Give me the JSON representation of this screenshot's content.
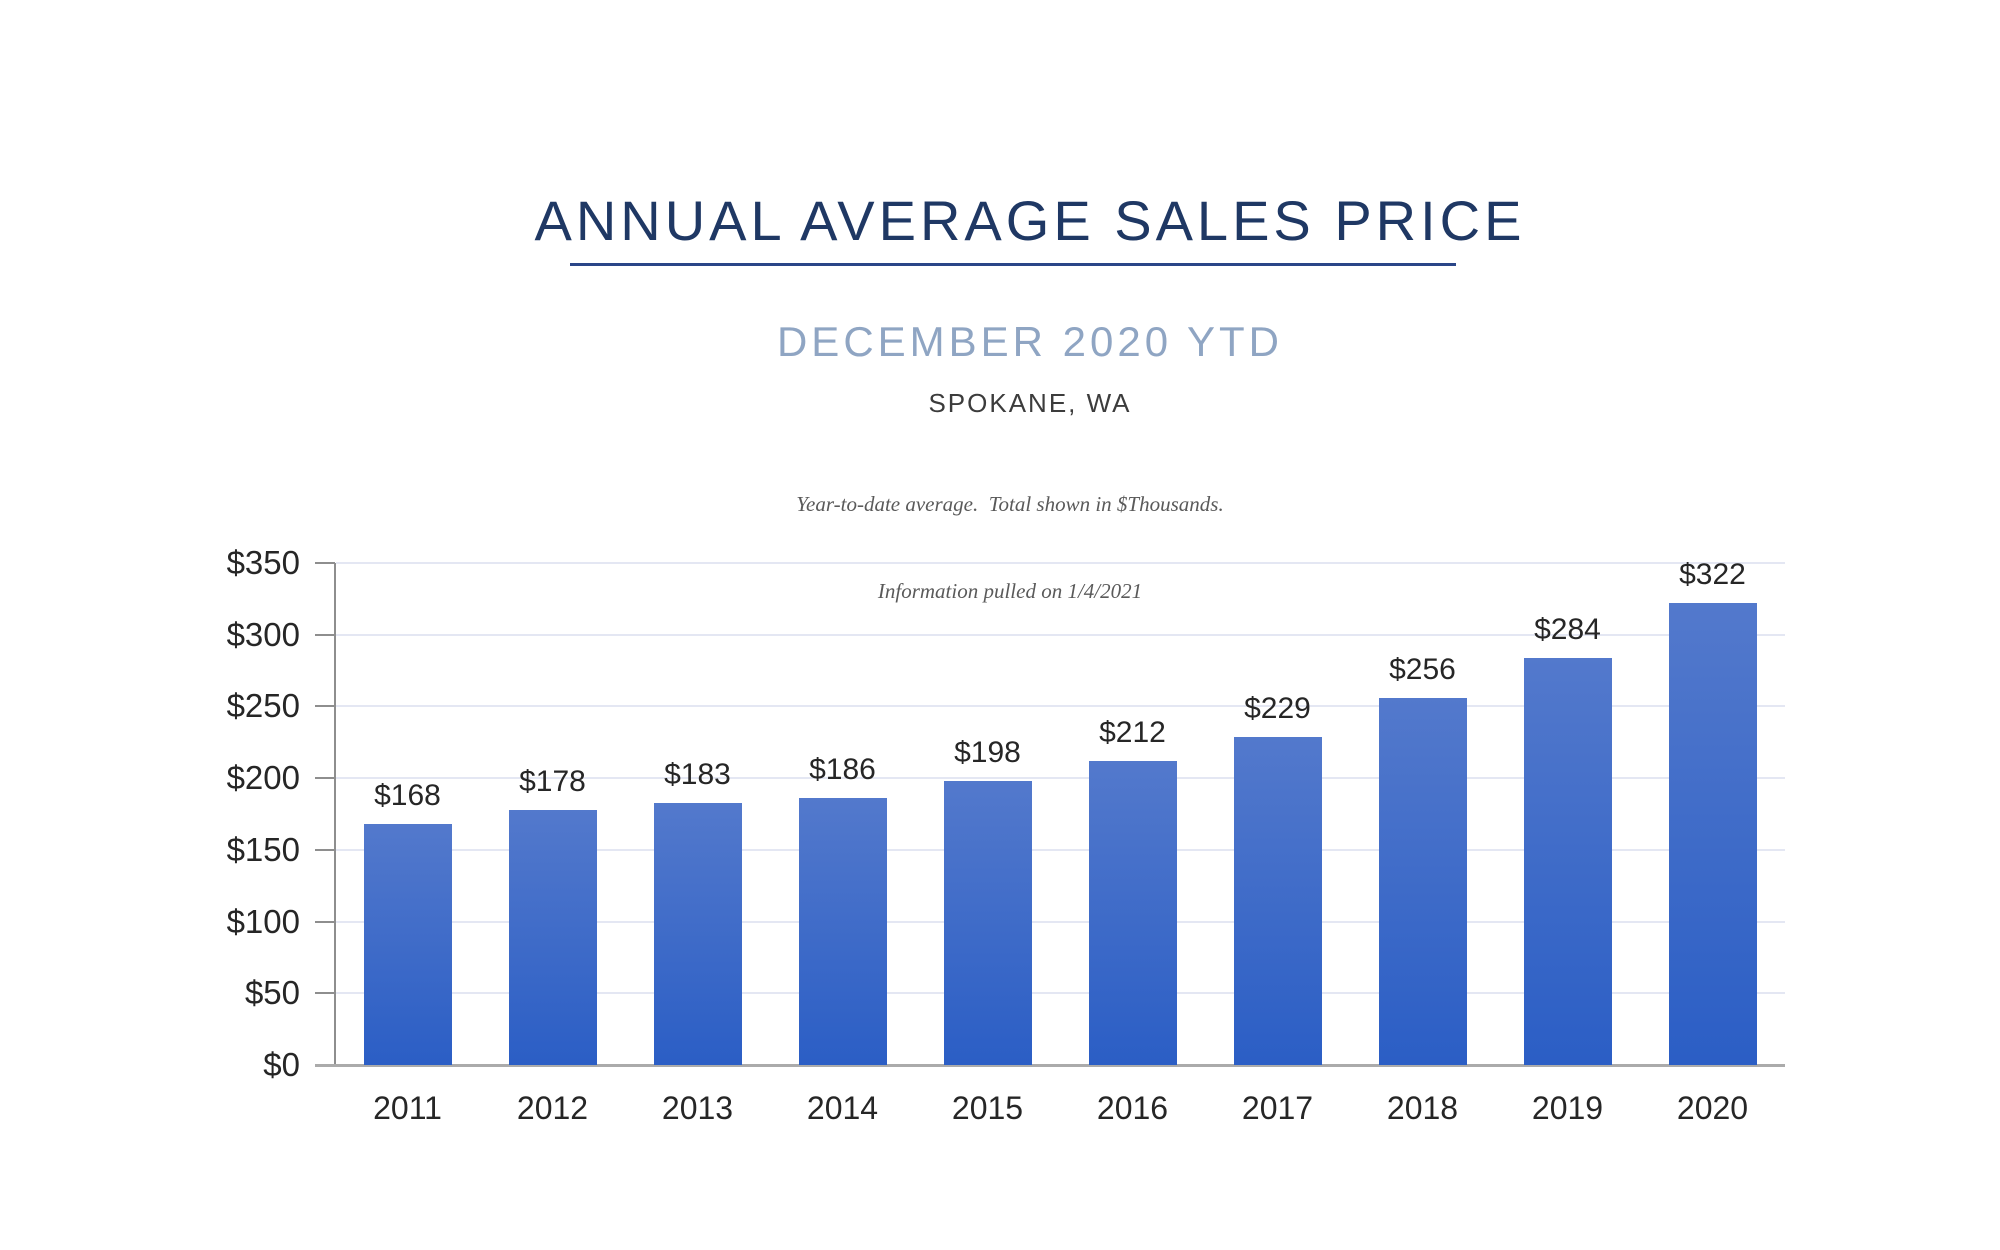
{
  "header": {
    "title": "ANNUAL AVERAGE SALES PRICE",
    "subtitle": "DECEMBER 2020 YTD",
    "location": "SPOKANE, WA",
    "note_line1": "Year-to-date average.  Total shown in $Thousands.",
    "note_line2": "Information pulled on 1/4/2021"
  },
  "colors": {
    "title_navy": "#1F3864",
    "underline_navy": "#2A4688",
    "subtitle_blue_gray": "#8FA5C3",
    "location_gray": "#3C3C3C",
    "note_gray": "#5A5A5A",
    "bar_gradient_top": "#5379CC",
    "bar_gradient_bottom": "#2B5EC5",
    "gridline": "#E4E7F3",
    "y_axis_line": "#8E8E8E",
    "x_baseline": "#ABABAB",
    "label_text": "#262626"
  },
  "chart_data": {
    "type": "bar",
    "title": "ANNUAL AVERAGE SALES PRICE",
    "subtitle": "DECEMBER 2020 YTD",
    "categories": [
      "2011",
      "2012",
      "2013",
      "2014",
      "2015",
      "2016",
      "2017",
      "2018",
      "2019",
      "2020"
    ],
    "values": [
      168,
      178,
      183,
      186,
      198,
      212,
      229,
      256,
      284,
      322
    ],
    "data_labels": [
      "$168",
      "$178",
      "$183",
      "$186",
      "$198",
      "$212",
      "$229",
      "$256",
      "$284",
      "$322"
    ],
    "xlabel": "",
    "ylabel": "",
    "units": "$Thousands",
    "ylim": [
      0,
      350
    ],
    "ytick_step": 50,
    "ytick_labels": [
      "$0",
      "$50",
      "$100",
      "$150",
      "$200",
      "$250",
      "$300",
      "$350"
    ],
    "grid": true,
    "legend": false
  }
}
